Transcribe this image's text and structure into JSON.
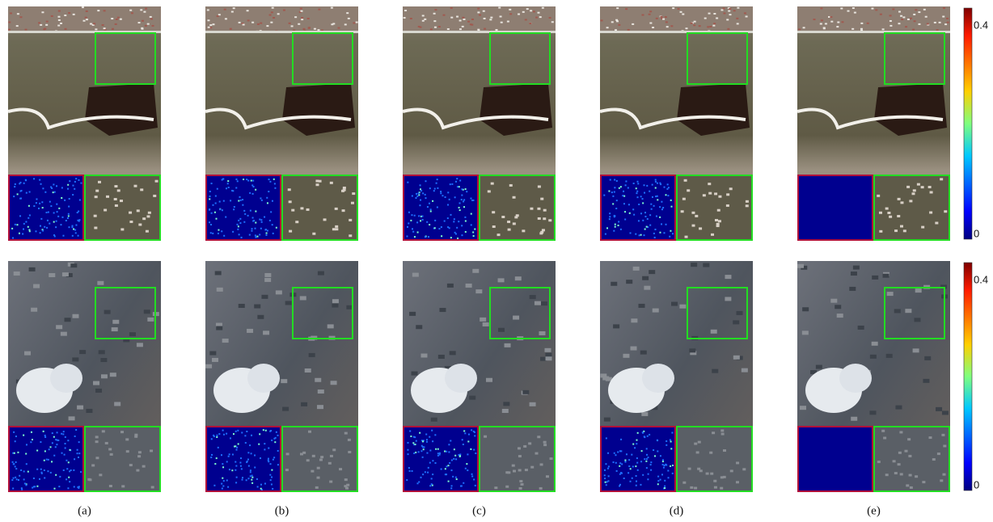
{
  "captions": [
    "(a)",
    "(b)",
    "(c)",
    "(d)",
    "(e)"
  ],
  "colorbars": [
    {
      "max_label": "0.4",
      "min_label": "0"
    },
    {
      "max_label": "0.4",
      "min_label": "0"
    }
  ]
}
